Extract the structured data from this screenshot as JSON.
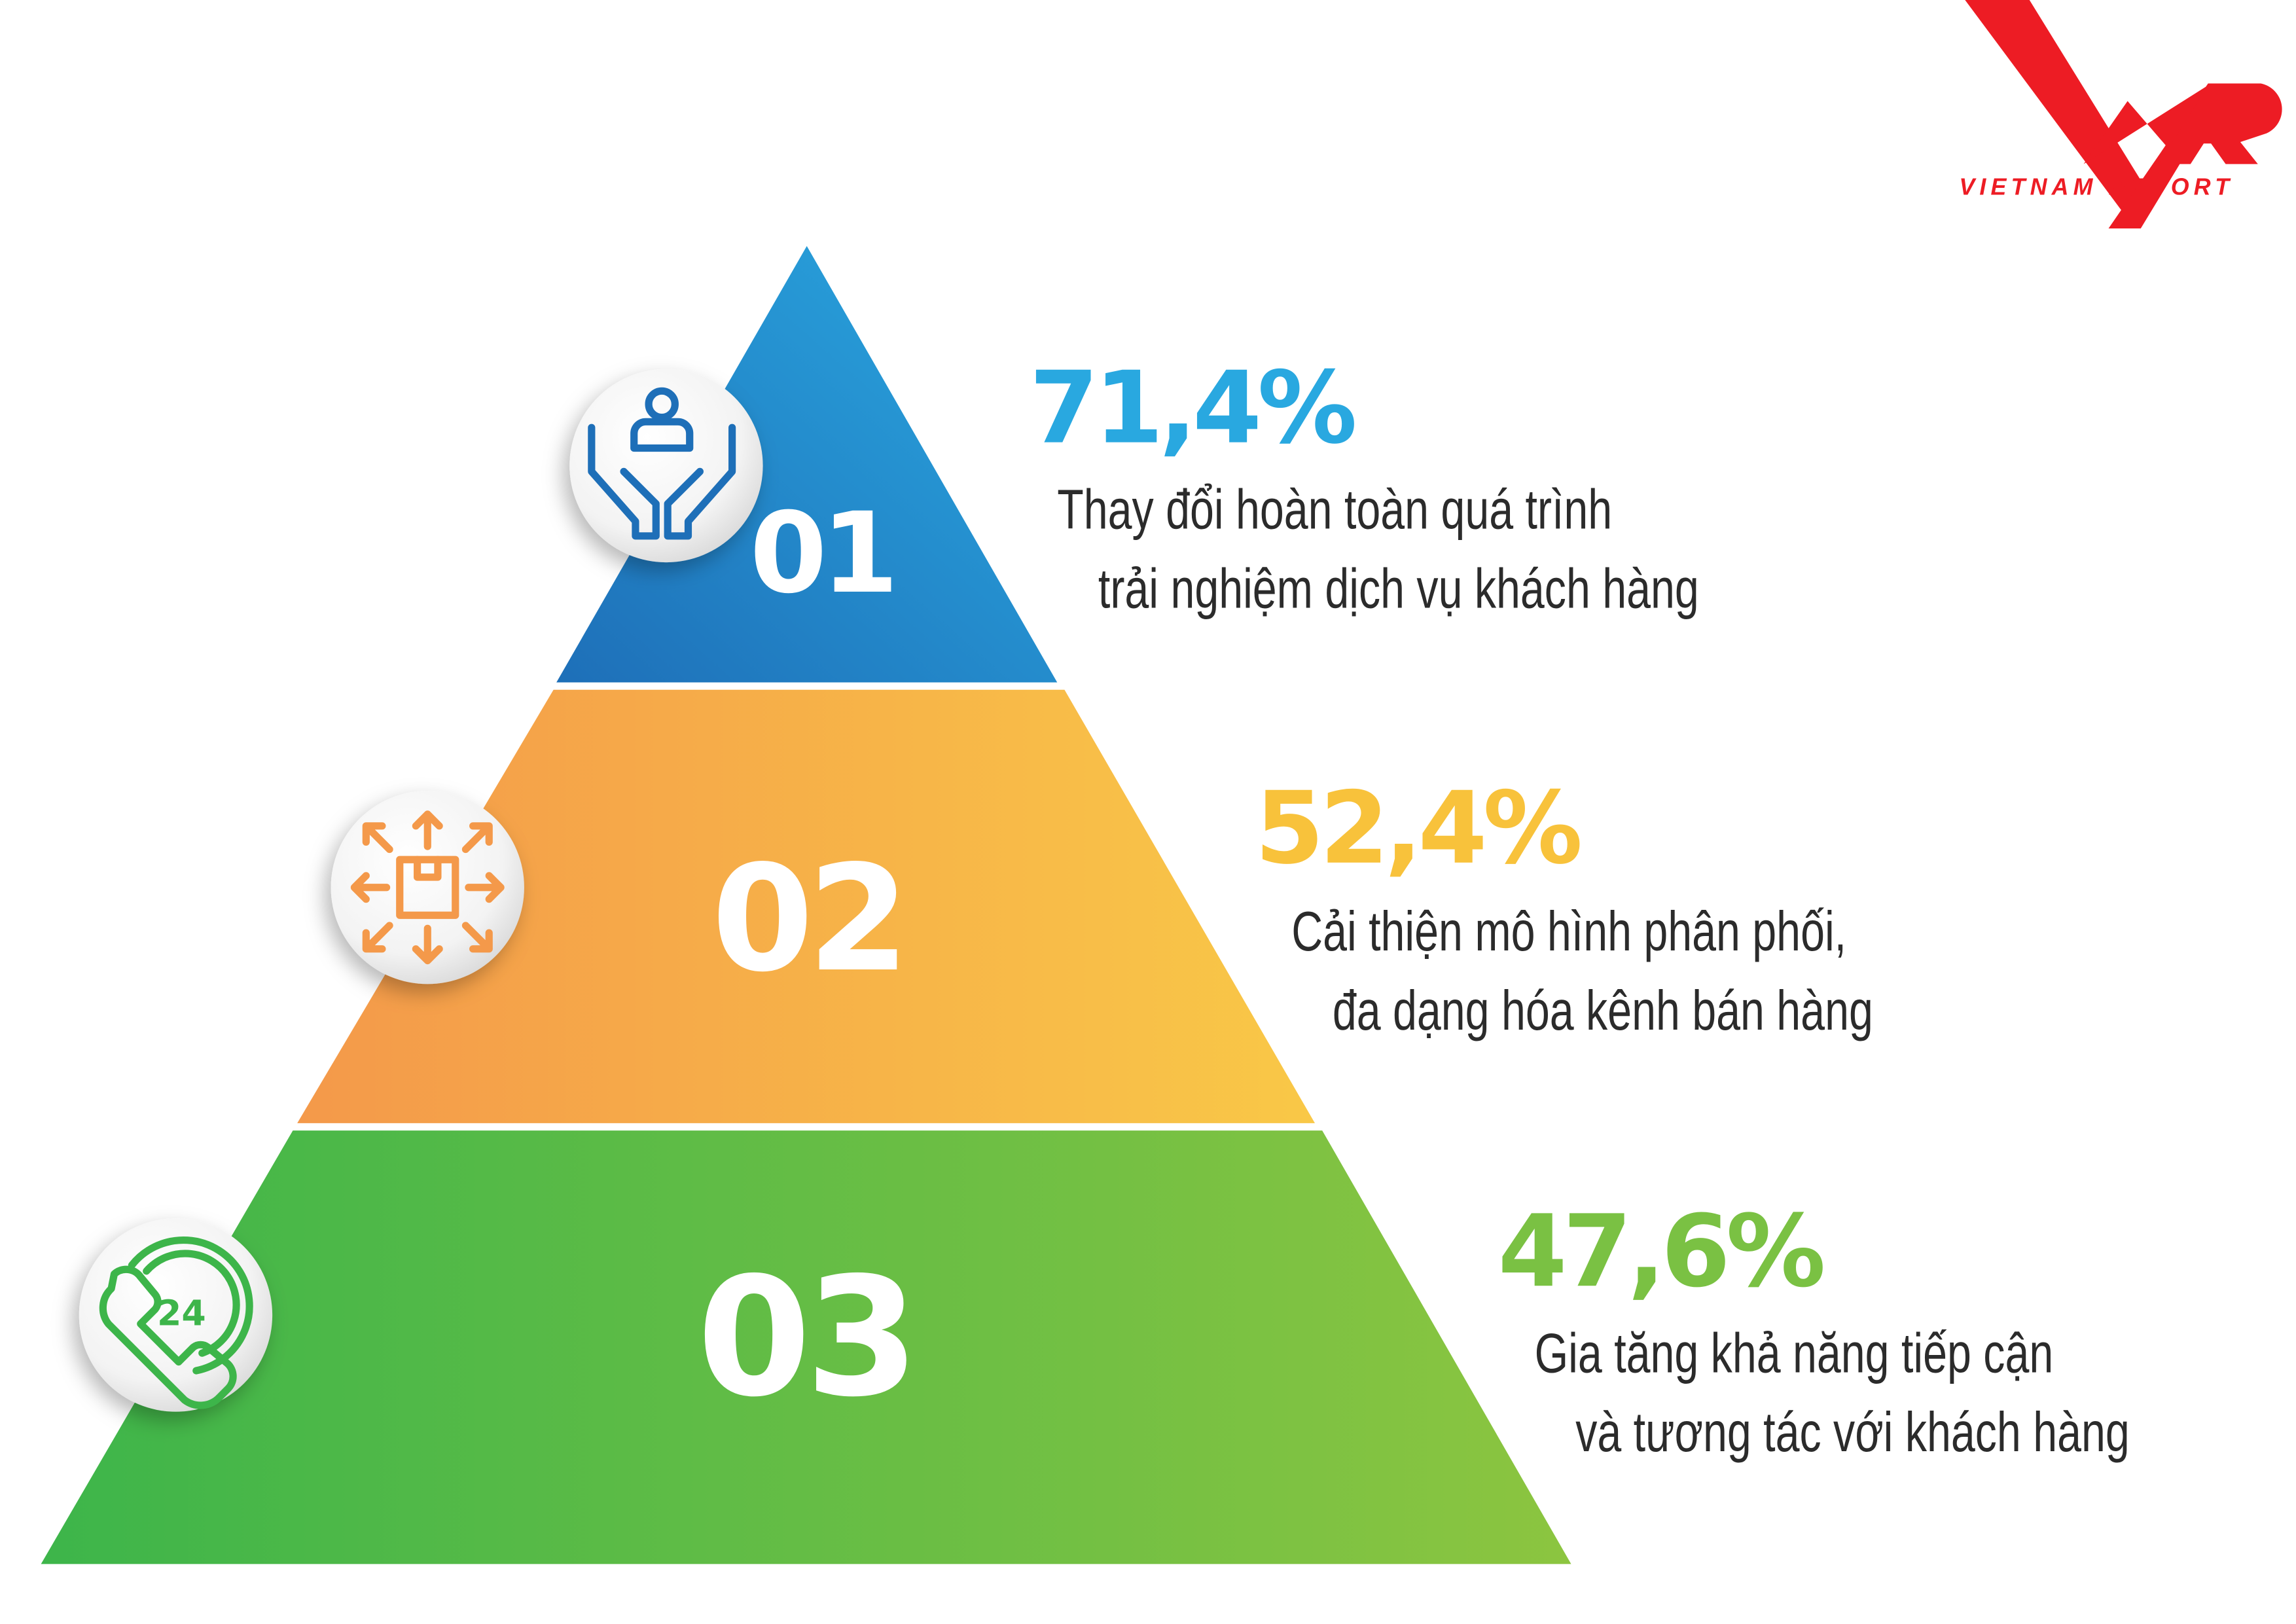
{
  "logo": {
    "mark": "VNR",
    "text": "VIETNAM REPORT",
    "color": "#ed1c24"
  },
  "tiers": [
    {
      "number": "01",
      "percent": "71,4%",
      "value": 71.4,
      "line1": "Thay đổi hoàn toàn quá trình",
      "line2": "trải nghiệm dịch vụ khách hàng",
      "icon": "hands-holding-person-icon",
      "color": "#29a8e0",
      "gradient": [
        "#1e6fb8",
        "#2aa9e1"
      ]
    },
    {
      "number": "02",
      "percent": "52,4%",
      "value": 52.4,
      "line1": "Cải thiện mô hình phân phối,",
      "line2": "đa dạng hóa kênh bán hàng",
      "icon": "box-distribution-arrows-icon",
      "color": "#f8c23b",
      "gradient": [
        "#f4994a",
        "#f9c847"
      ]
    },
    {
      "number": "03",
      "percent": "47,6%",
      "value": 47.6,
      "line1": "Gia tăng khả năng tiếp cận",
      "line2": "và tương tác với khách hàng",
      "icon": "phone-24-icon",
      "color": "#7ac143",
      "gradient": [
        "#3db54a",
        "#8cc540"
      ]
    }
  ]
}
